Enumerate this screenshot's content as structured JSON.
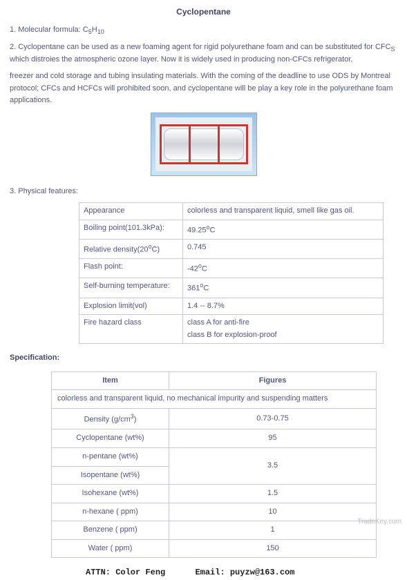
{
  "title": "Cyclopentane",
  "line1_prefix": "1.  Molecular formula: C",
  "line1_sub1": "5",
  "line1_mid": "H",
  "line1_sub2": "10",
  "para2_a": "2. Cyclopentane can be used as a new foaming agent for rigid polyurethane foam and can be substituted for CFC",
  "para2_sub": "S",
  "para2_b": " which distroies the atmospheric ozone layer. Now it is widely used in producing non-CFCs refrigerator,",
  "para2_c": "freezer and cold storage and tubing insulating materials. With the coming of the deadline to use ODS by Montreal protocol; CFCs and HCFCs will prohibited soon, and cyclopentane will be play a key role in the polyurethane foam applications.",
  "sec3": "3. Physical features:",
  "phys": {
    "r1k": "Appearance",
    "r1v": "colorless and transparent liquid, smell like gas oil.",
    "r2k": "Boiling point(101.3kPa):",
    "r2v_a": "49.25",
    "r2v_b": "C",
    "r3k_a": "Relative density(20",
    "r3k_b": "C)",
    "r3v": "0.745",
    "r4k": "Flash point:",
    "r4v_a": "-42",
    "r4v_b": "C",
    "r5k": "Self-burning temperature:",
    "r5v_a": "361",
    "r5v_b": "C",
    "r6k": "Explosion limit(vol)",
    "r6v": "1.4 -- 8.7%",
    "r7k": "Fire hazard class",
    "r7v1": "class A for anti-fire",
    "r7v2": "class B for explosion-proof"
  },
  "specLabel": "Specification:",
  "spec": {
    "h1": "Item",
    "h2": "Figures",
    "full": "colorless and transparent liquid, no mechanical impurity and suspending matters",
    "r1k_a": "Density (g/cm",
    "r1k_b": ")",
    "r1v": "0.73-0.75",
    "r2k": "Cyclopentane (wt%)",
    "r2v": "95",
    "r3k": "n-pentane (wt%)",
    "r34v": "3.5",
    "r4k": "Isopentane (wt%)",
    "r5k": "Isohexane (wt%)",
    "r5v": "1.5",
    "r6k": "n-hexane ( ppm)",
    "r6v": "10",
    "r7k": "Benzene ( ppm)",
    "r7v": "1",
    "r8k": "Water ( ppm)",
    "r8v": "150"
  },
  "contact_attn": "ATTN: Color Feng",
  "contact_email": "Email: puyzw@163.com",
  "watermark": "TradeKey.com",
  "colors": {
    "text": "#555577",
    "border": "#c8c8d4",
    "bg": "#ffffff"
  }
}
